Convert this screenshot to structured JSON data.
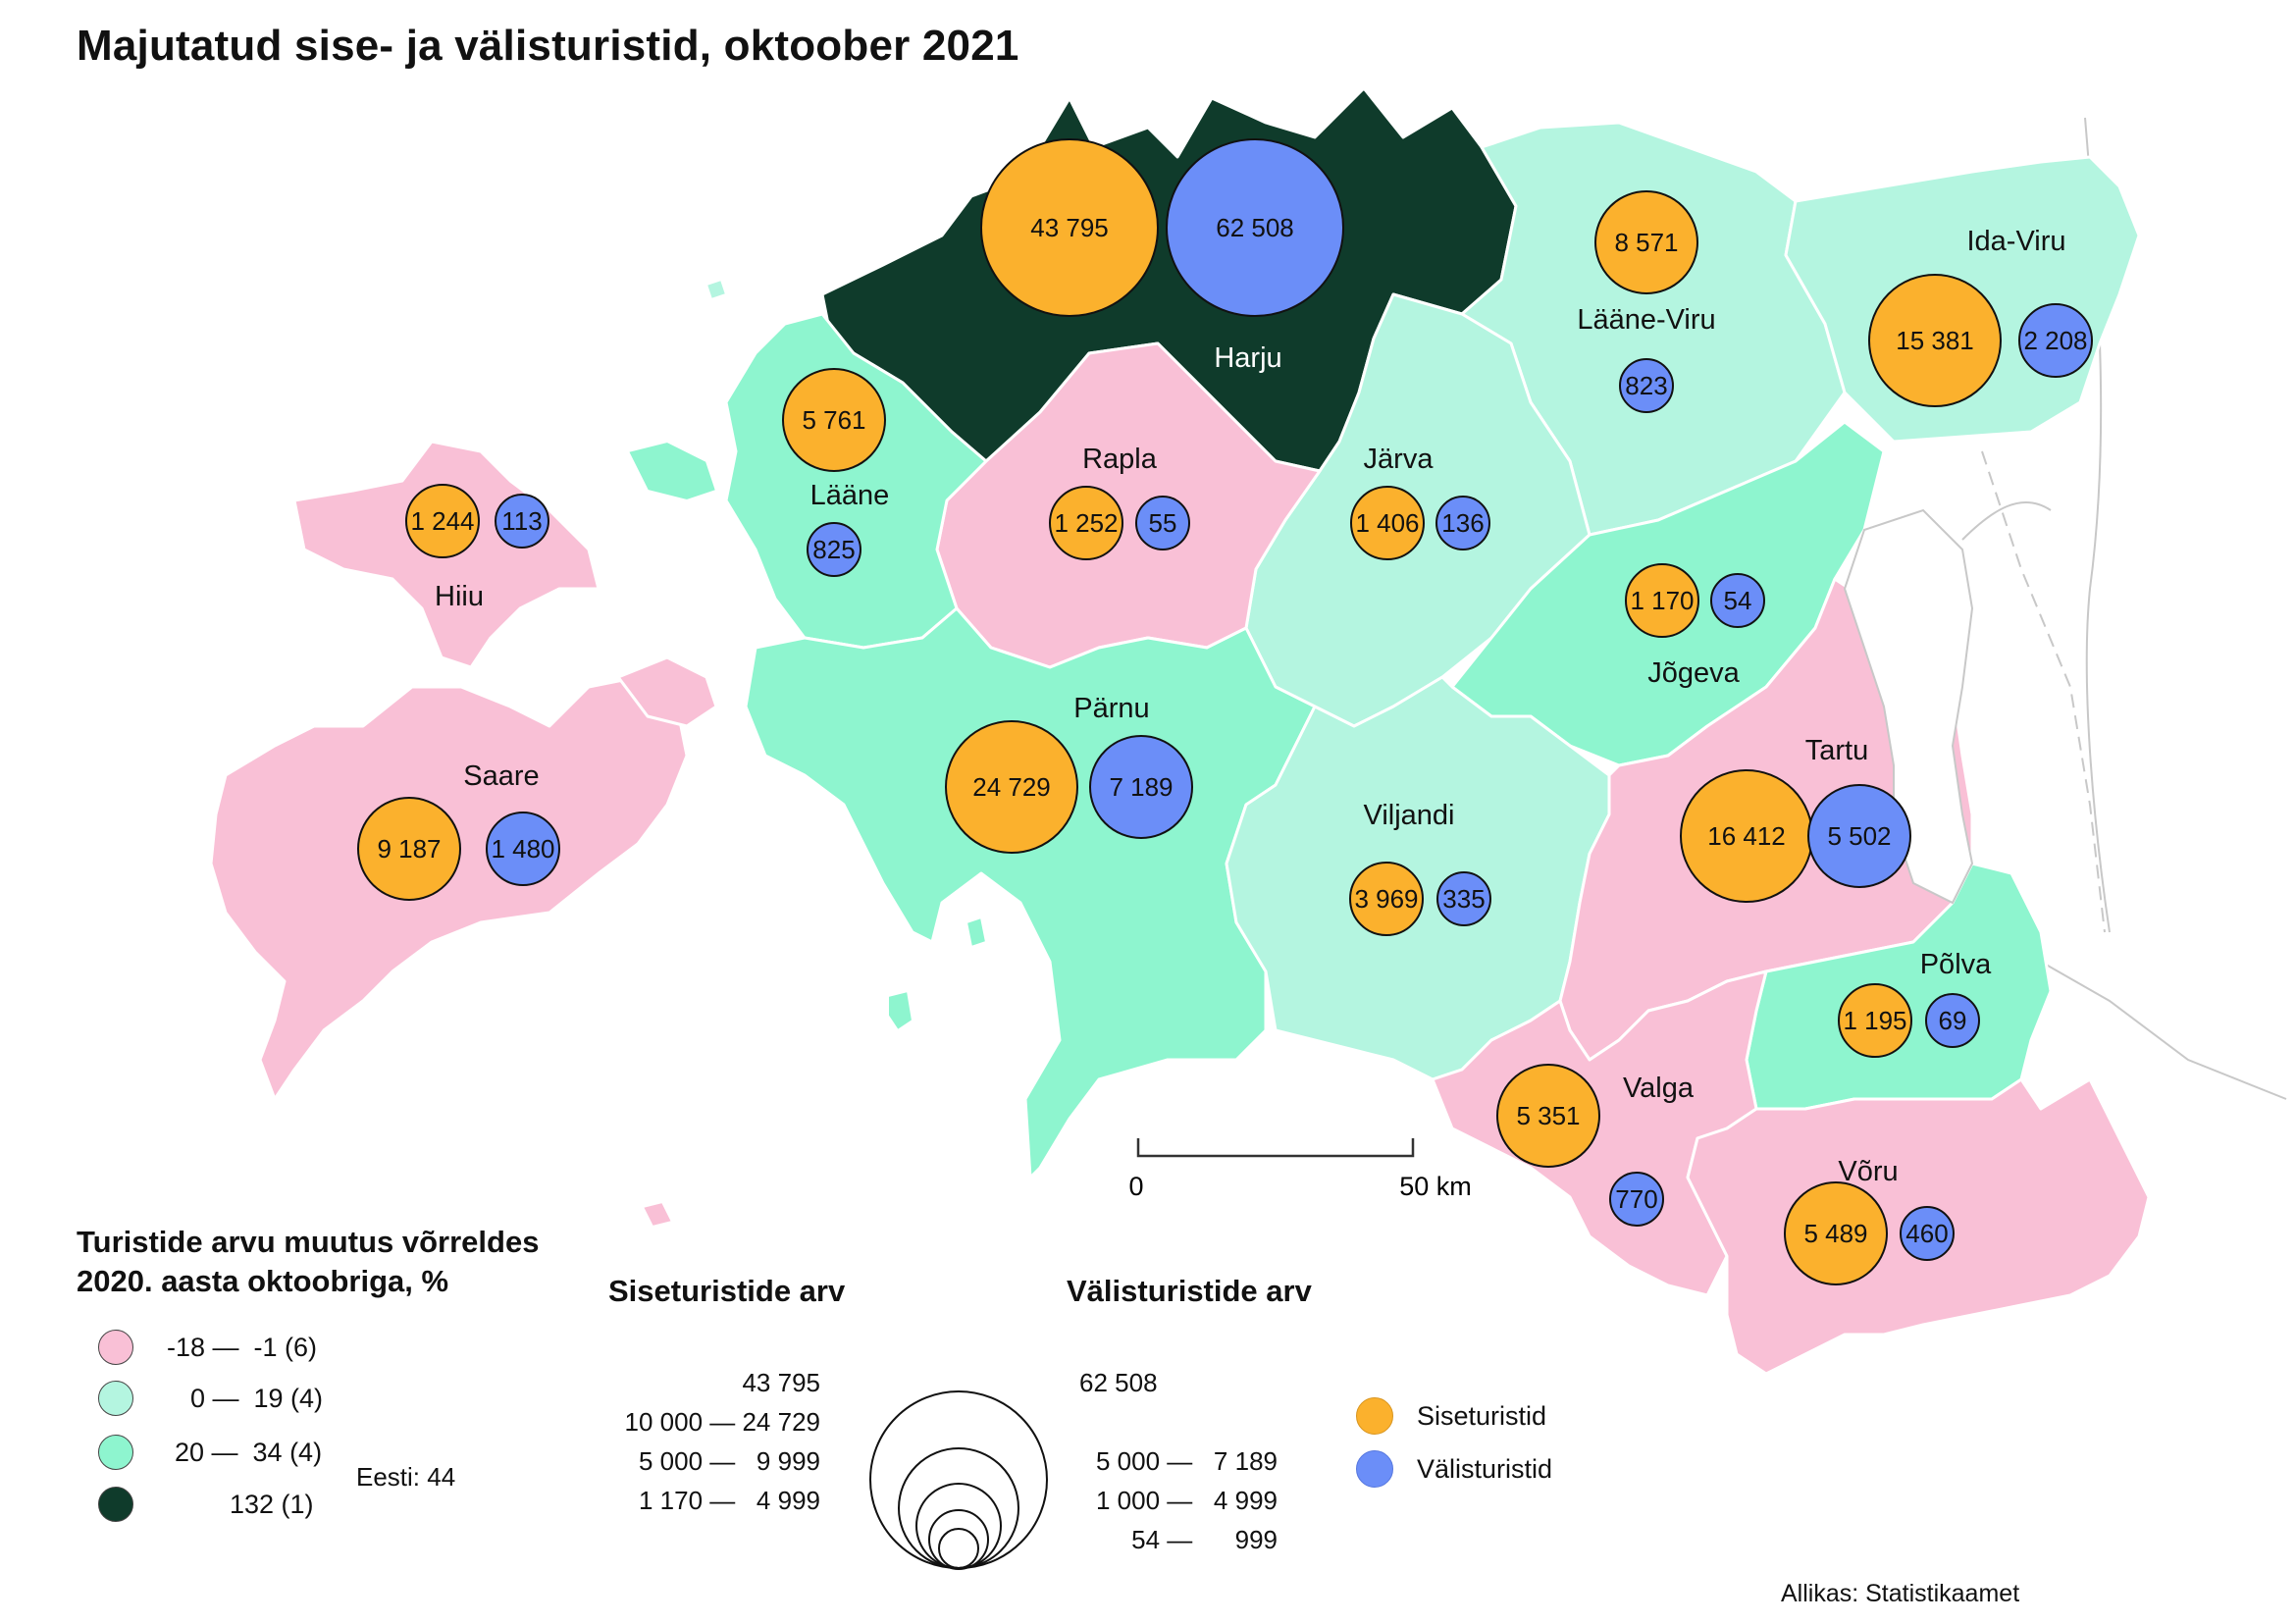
{
  "title": "Majutatud sise- ja välisturistid, oktoober 2021",
  "colors": {
    "class1": "#f9c0d6",
    "class2": "#b4f5e0",
    "class3": "#8ef5cf",
    "class4": "#0f3b2b",
    "domestic": "#fbb12d",
    "foreign": "#6b8ef8"
  },
  "counties": [
    {
      "name": "Harju",
      "class": 4,
      "domestic": "43 795",
      "foreign": "62 508"
    },
    {
      "name": "Lääne-Viru",
      "class": 2,
      "domestic": "8 571",
      "foreign": "823"
    },
    {
      "name": "Ida-Viru",
      "class": 2,
      "domestic": "15 381",
      "foreign": "2 208"
    },
    {
      "name": "Lääne",
      "class": 3,
      "domestic": "5 761",
      "foreign": "825"
    },
    {
      "name": "Rapla",
      "class": 1,
      "domestic": "1 252",
      "foreign": "55"
    },
    {
      "name": "Järva",
      "class": 2,
      "domestic": "1 406",
      "foreign": "136"
    },
    {
      "name": "Hiiu",
      "class": 1,
      "domestic": "1 244",
      "foreign": "113"
    },
    {
      "name": "Jõgeva",
      "class": 3,
      "domestic": "1 170",
      "foreign": "54"
    },
    {
      "name": "Saare",
      "class": 1,
      "domestic": "9 187",
      "foreign": "1 480"
    },
    {
      "name": "Pärnu",
      "class": 3,
      "domestic": "24 729",
      "foreign": "7 189"
    },
    {
      "name": "Tartu",
      "class": 1,
      "domestic": "16 412",
      "foreign": "5 502"
    },
    {
      "name": "Viljandi",
      "class": 2,
      "domestic": "3 969",
      "foreign": "335"
    },
    {
      "name": "Põlva",
      "class": 3,
      "domestic": "1 195",
      "foreign": "69"
    },
    {
      "name": "Valga",
      "class": 1,
      "domestic": "5 351",
      "foreign": "770"
    },
    {
      "name": "Võru",
      "class": 1,
      "domestic": "5 489",
      "foreign": "460"
    }
  ],
  "scalebar": {
    "start": "0",
    "end": "50 km"
  },
  "legend_change": {
    "title_line1": "Turistide arvu muutus võrreldes",
    "title_line2": "2020. aasta oktoobriga, %",
    "classes": [
      "-18 —  -1 (6)",
      "0 —  19 (4)",
      "20 —  34 (4)",
      "132 (1)"
    ],
    "total": "Eesti: 44"
  },
  "legend_domestic": {
    "title": "Siseturistide arv",
    "ranges": [
      "43 795",
      "10 000 — 24 729",
      "5 000 —   9 999",
      "1 170 —   4 999"
    ]
  },
  "legend_foreign": {
    "title": "Välisturistide arv",
    "ranges": [
      "62 508",
      "5 000 —   7 189",
      "1 000 —   4 999",
      "54 —      999"
    ]
  },
  "legend_type": {
    "domestic": "Siseturistid",
    "foreign": "Välisturistid"
  },
  "source": "Allikas: Statistikaamet"
}
